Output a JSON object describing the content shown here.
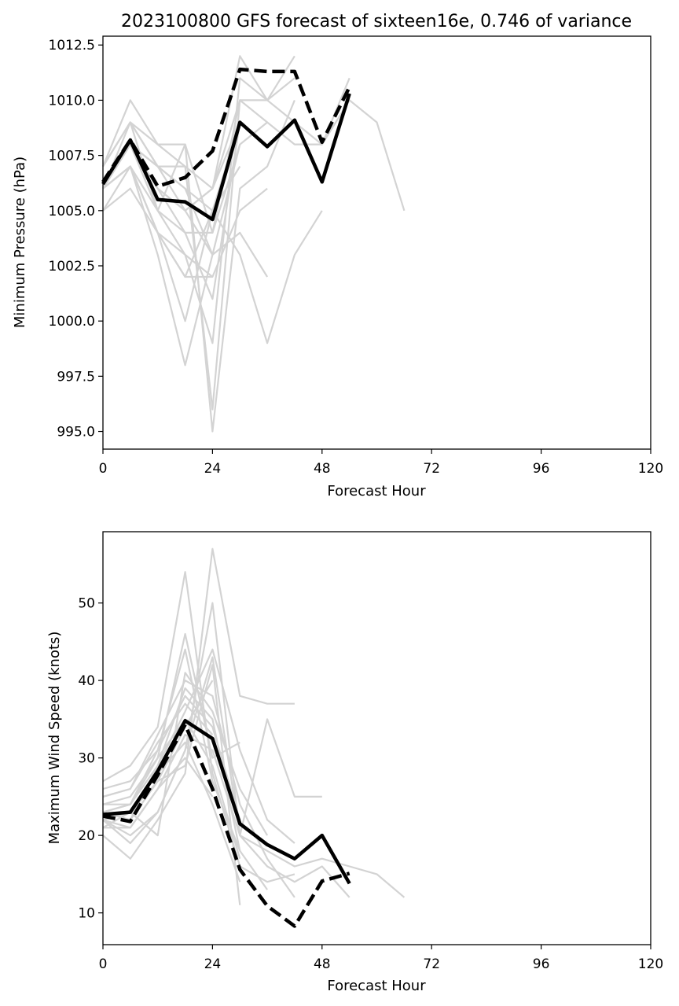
{
  "chart_data": [
    {
      "type": "line",
      "title": "2023100800 GFS forecast of sixteen16e, 0.746 of variance",
      "xlabel": "Forecast Hour",
      "ylabel": "Minimum Pressure (hPa)",
      "xlim": [
        0,
        120
      ],
      "ylim": [
        994.2,
        1012.9
      ],
      "xticks": [
        0,
        24,
        48,
        72,
        96,
        120
      ],
      "yticks": [
        995.0,
        997.5,
        1000.0,
        1002.5,
        1005.0,
        1007.5,
        1010.0,
        1012.5
      ],
      "ytick_labels": [
        "995.0",
        "997.5",
        "1000.0",
        "1002.5",
        "1005.0",
        "1007.5",
        "1010.0",
        "1012.5"
      ],
      "grid": false,
      "ensemble_color": "#d3d3d3",
      "main_color": "#000000",
      "series": [
        {
          "style": "dashed",
          "x": [
            0,
            6,
            12,
            18,
            24,
            30,
            36,
            42,
            48,
            54
          ],
          "values": [
            1006.3,
            1008.2,
            1006.1,
            1006.5,
            1007.7,
            1011.4,
            1011.3,
            1011.3,
            1008.1,
            1010.6
          ]
        },
        {
          "style": "solid",
          "x": [
            0,
            6,
            12,
            18,
            24,
            30,
            36,
            42,
            48,
            54
          ],
          "values": [
            1006.2,
            1008.2,
            1005.5,
            1005.4,
            1004.6,
            1009.0,
            1007.9,
            1009.1,
            1006.3,
            1010.3
          ]
        }
      ],
      "ensemble": [
        {
          "x": [
            0,
            6,
            12,
            18,
            24,
            30,
            36
          ],
          "values": [
            1005.0,
            1006.0,
            1004.0,
            1002.0,
            1002.0,
            1005.0,
            1006.0
          ]
        },
        {
          "x": [
            0,
            6,
            12,
            18,
            24,
            30,
            36
          ],
          "values": [
            1006.0,
            1007.0,
            1003.0,
            998.0,
            1003.0,
            1004.0,
            1002.0
          ]
        },
        {
          "x": [
            0,
            6,
            12,
            18,
            24,
            30,
            36,
            42,
            48
          ],
          "values": [
            1006.0,
            1007.0,
            1004.0,
            1000.0,
            1005.0,
            1003.0,
            999.0,
            1003.0,
            1005.0
          ]
        },
        {
          "x": [
            0,
            6,
            12,
            18,
            24,
            30,
            36,
            42
          ],
          "values": [
            1007.0,
            1010.0,
            1008.0,
            1008.0,
            995.0,
            1006.0,
            1007.0,
            1010.0
          ]
        },
        {
          "x": [
            0,
            6,
            12,
            18,
            24,
            30,
            36,
            42,
            48,
            54
          ],
          "values": [
            1006.0,
            1009.0,
            1007.0,
            1007.0,
            996.0,
            1010.0,
            1009.0,
            1008.0,
            1008.0,
            1011.0
          ]
        },
        {
          "x": [
            0,
            6,
            12,
            18,
            24,
            30,
            36,
            42,
            48,
            54,
            60,
            66
          ],
          "values": [
            1006.0,
            1008.0,
            1006.0,
            1005.0,
            1006.0,
            1012.0,
            1010.0,
            1009.0,
            1008.0,
            1010.0,
            1009.0,
            1005.0
          ]
        },
        {
          "x": [
            0,
            6,
            12,
            18,
            24,
            30,
            36,
            42
          ],
          "values": [
            1007.0,
            1009.0,
            1005.0,
            1003.0,
            999.0,
            1011.0,
            1010.0,
            1012.0
          ]
        },
        {
          "x": [
            0,
            6,
            12,
            18,
            24,
            30
          ],
          "values": [
            1006.0,
            1008.0,
            1006.0,
            1004.0,
            1001.0,
            1009.0
          ]
        },
        {
          "x": [
            0,
            6,
            12,
            18,
            24,
            30,
            36
          ],
          "values": [
            1007.0,
            1009.0,
            1007.0,
            1006.0,
            1003.0,
            1008.0,
            1009.0
          ]
        },
        {
          "x": [
            0,
            6,
            12,
            18,
            24,
            30,
            36,
            42
          ],
          "values": [
            1006.0,
            1008.0,
            1005.0,
            1008.0,
            1004.0,
            1010.0,
            1010.0,
            1011.0
          ]
        },
        {
          "x": [
            0,
            6,
            12,
            18,
            24,
            30
          ],
          "values": [
            1005.0,
            1007.0,
            1004.0,
            1002.0,
            1005.0,
            1007.0
          ]
        },
        {
          "x": [
            0,
            6,
            12,
            18,
            24,
            30
          ],
          "values": [
            1006.0,
            1008.0,
            1006.0,
            1005.0,
            1006.0,
            1009.0
          ]
        },
        {
          "x": [
            0,
            6,
            12,
            18,
            24,
            30
          ],
          "values": [
            1007.0,
            1009.0,
            1008.0,
            1007.0,
            1006.0,
            1010.0
          ]
        },
        {
          "x": [
            0,
            6,
            12,
            18,
            24,
            30
          ],
          "values": [
            1006.0,
            1007.0,
            1005.0,
            1004.0,
            1004.0,
            1008.0
          ]
        },
        {
          "x": [
            0,
            6,
            12,
            18,
            24,
            30
          ],
          "values": [
            1006.0,
            1008.0,
            1007.0,
            1006.0,
            1005.0,
            1009.0
          ]
        },
        {
          "x": [
            0,
            6,
            12,
            18,
            24
          ],
          "values": [
            1006.0,
            1008.0,
            1007.0,
            1005.0,
            1003.0
          ]
        },
        {
          "x": [
            0,
            6,
            12,
            18,
            24
          ],
          "values": [
            1006.0,
            1007.0,
            1004.0,
            1003.0,
            1002.0
          ]
        }
      ]
    },
    {
      "type": "line",
      "title": "",
      "xlabel": "Forecast Hour",
      "ylabel": "Maximum Wind Speed (knots)",
      "xlim": [
        0,
        120
      ],
      "ylim": [
        5.9,
        59.2
      ],
      "xticks": [
        0,
        24,
        48,
        72,
        96,
        120
      ],
      "yticks": [
        10,
        20,
        30,
        40,
        50
      ],
      "ytick_labels": [
        "10",
        "20",
        "30",
        "40",
        "50"
      ],
      "grid": false,
      "ensemble_color": "#d3d3d3",
      "main_color": "#000000",
      "series": [
        {
          "style": "dashed",
          "x": [
            0,
            6,
            12,
            18,
            24,
            30,
            36,
            42,
            48,
            54
          ],
          "values": [
            22.5,
            21.8,
            27.8,
            34.3,
            26.0,
            15.6,
            10.9,
            8.3,
            14.1,
            15.1
          ]
        },
        {
          "style": "solid",
          "x": [
            0,
            6,
            12,
            18,
            24,
            30,
            36,
            42,
            48,
            54
          ],
          "values": [
            22.7,
            23.0,
            28.3,
            34.8,
            32.5,
            21.5,
            18.8,
            17.0,
            20.0,
            13.8
          ]
        }
      ],
      "ensemble": [
        {
          "x": [
            0,
            6,
            12,
            18,
            24,
            30,
            36,
            42
          ],
          "values": [
            20.0,
            17.0,
            22.0,
            28.0,
            57.0,
            38.0,
            37.0,
            37.0
          ]
        },
        {
          "x": [
            0,
            6,
            12,
            18,
            24,
            30,
            36,
            42,
            48
          ],
          "values": [
            22.0,
            19.0,
            23.0,
            31.0,
            50.0,
            20.0,
            35.0,
            25.0,
            25.0
          ]
        },
        {
          "x": [
            0,
            6,
            12,
            18,
            24,
            30,
            36,
            42
          ],
          "values": [
            27.0,
            29.0,
            34.0,
            54.0,
            28.0,
            16.0,
            14.0,
            15.0
          ]
        },
        {
          "x": [
            0,
            6,
            12,
            18,
            24,
            30,
            36,
            42,
            48,
            54,
            60,
            66
          ],
          "values": [
            22.0,
            20.0,
            23.0,
            31.0,
            43.0,
            20.0,
            18.0,
            16.0,
            17.0,
            16.0,
            15.0,
            12.0
          ]
        },
        {
          "x": [
            0,
            6,
            12,
            18,
            24,
            30,
            36,
            42
          ],
          "values": [
            23.0,
            22.0,
            29.0,
            36.0,
            44.0,
            31.0,
            22.0,
            19.0
          ]
        },
        {
          "x": [
            0,
            6,
            12,
            18,
            24,
            30
          ],
          "values": [
            24.0,
            24.0,
            30.0,
            46.0,
            30.0,
            32.0
          ]
        },
        {
          "x": [
            0,
            6,
            12,
            18,
            24,
            30,
            36
          ],
          "values": [
            21.0,
            23.0,
            20.0,
            41.0,
            36.0,
            26.0,
            20.0
          ]
        },
        {
          "x": [
            0,
            6,
            12,
            18,
            24,
            30,
            36
          ],
          "values": [
            23.0,
            24.0,
            31.0,
            44.0,
            27.0,
            18.0,
            13.0
          ]
        },
        {
          "x": [
            0,
            6,
            12,
            18,
            24,
            30,
            36,
            42
          ],
          "values": [
            25.0,
            26.0,
            33.0,
            40.0,
            38.0,
            24.0,
            17.0,
            12.0
          ]
        },
        {
          "x": [
            0,
            6,
            12,
            18,
            24,
            30,
            36,
            42,
            48,
            54
          ],
          "values": [
            22.0,
            21.0,
            26.0,
            33.0,
            31.0,
            20.0,
            16.0,
            14.0,
            16.0,
            12.0
          ]
        },
        {
          "x": [
            0,
            6,
            12,
            18,
            24,
            30
          ],
          "values": [
            26.0,
            27.0,
            31.0,
            38.0,
            34.0,
            22.0
          ]
        },
        {
          "x": [
            0,
            6,
            12,
            18,
            24,
            30
          ],
          "values": [
            23.0,
            22.0,
            27.0,
            29.0,
            42.0,
            11.0
          ]
        },
        {
          "x": [
            0,
            6,
            12,
            18,
            24,
            30
          ],
          "values": [
            22.0,
            23.0,
            28.0,
            32.0,
            24.0,
            14.0
          ]
        },
        {
          "x": [
            0,
            6,
            12,
            18,
            24,
            30
          ],
          "values": [
            24.0,
            25.0,
            30.0,
            35.0,
            29.0,
            17.0
          ]
        },
        {
          "x": [
            0,
            6,
            12,
            18,
            24
          ],
          "values": [
            21.0,
            21.0,
            26.0,
            30.0,
            25.0
          ]
        },
        {
          "x": [
            0,
            6,
            12,
            18,
            24
          ],
          "values": [
            25.0,
            26.0,
            32.0,
            37.0,
            33.0
          ]
        },
        {
          "x": [
            0,
            6,
            12,
            18,
            24,
            30
          ],
          "values": [
            23.0,
            24.0,
            29.0,
            39.0,
            35.0,
            18.0
          ]
        },
        {
          "x": [
            0,
            6,
            12,
            18,
            24
          ],
          "values": [
            22.0,
            23.0,
            27.0,
            34.0,
            40.0
          ]
        }
      ]
    }
  ]
}
